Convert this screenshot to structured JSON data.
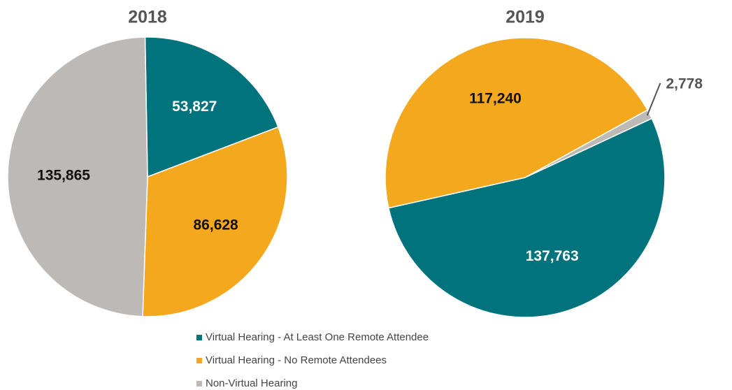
{
  "chart_data": {
    "type": "pie",
    "categories": [
      "Virtual Hearing - At Least One Remote Attendee",
      "Virtual Hearing - No Remote Attendees",
      "Non-Virtual Hearing"
    ],
    "colors": [
      "#00737c",
      "#f4a81d",
      "#bdb9b7"
    ],
    "series": [
      {
        "name": "2018",
        "values": [
          53827,
          86628,
          135865
        ],
        "value_labels": [
          "53,827",
          "86,628",
          "135,865"
        ]
      },
      {
        "name": "2019",
        "values": [
          137763,
          117240,
          2778
        ],
        "value_labels": [
          "137,763",
          "117,240",
          "2,778"
        ]
      }
    ]
  }
}
